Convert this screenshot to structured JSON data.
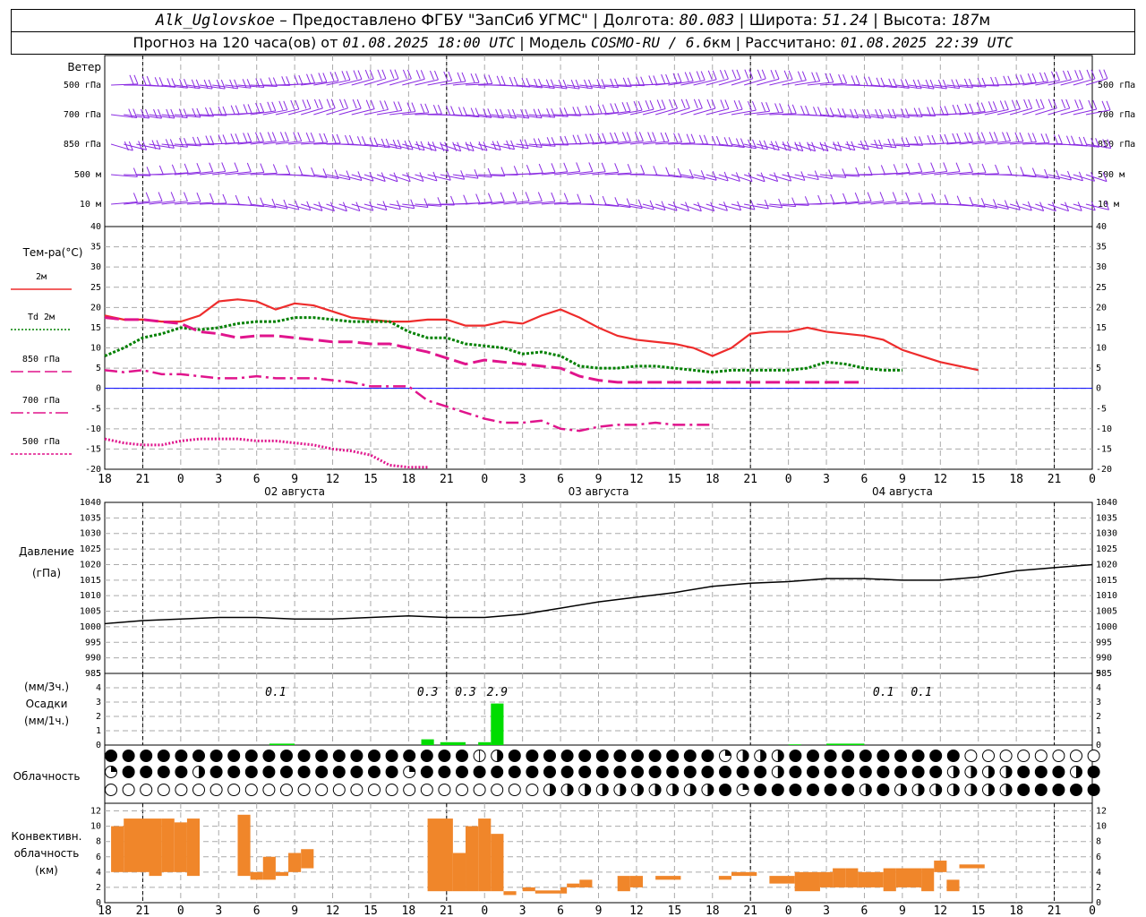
{
  "header": {
    "station": "Alk_Uglovskoe",
    "provider": " – Предоставлено ФГБУ \"ЗапСиб УГМС\" | Долгота: ",
    "lon": "80.083",
    "lat_label": " | Широта: ",
    "lat": "51.24",
    "alt_label": " | Высота: ",
    "alt": "187",
    "alt_unit": "м",
    "forecast_prefix": "Прогноз на 120 часа(ов) от ",
    "run_time": "01.08.2025 18:00 UTC",
    "model_prefix": "  | Модель ",
    "model": "COSMO-RU / 6.6",
    "model_unit": "км",
    "calc_prefix": " | Рассчитано: ",
    "calc_time": "01.08.2025 22:39 UTC"
  },
  "colors": {
    "wind": "#8a2be2",
    "t2m": "#ee2c2c",
    "td2m": "#008000",
    "t850": "#e0148c",
    "t700": "#e0148c",
    "t500": "#e0148c",
    "pressure": "#000000",
    "precip": "#00dd00",
    "convective": "#f0862a",
    "grid": "#aaaaaa",
    "zero_line": "#0000ff"
  },
  "time_axis": {
    "hour_labels": [
      "18",
      "21",
      "0",
      "3",
      "6",
      "9",
      "12",
      "15",
      "18",
      "21",
      "0",
      "3",
      "6",
      "9",
      "12",
      "15",
      "18",
      "21",
      "0",
      "3",
      "6",
      "9",
      "12",
      "15",
      "18",
      "21",
      "0"
    ],
    "day_labels": [
      "02 августа",
      "03 августа",
      "04 августа"
    ]
  },
  "wind_panel": {
    "title": "Ветер",
    "levels": [
      "500 гПа",
      "700 гПа",
      "850 гПа",
      "500 м",
      "10 м"
    ]
  },
  "chart_data": [
    {
      "type": "line",
      "title": "Тем-ра(°C)",
      "x_hours": [
        0,
        3,
        6,
        9,
        12,
        15,
        18,
        21,
        24,
        27,
        30,
        33,
        36,
        39,
        42,
        45,
        48,
        51,
        54,
        57,
        60,
        63,
        66,
        69,
        72,
        75,
        78,
        81,
        84,
        87,
        90,
        93,
        96,
        99,
        102,
        105,
        108,
        111,
        114,
        117,
        120,
        123,
        126,
        129,
        132,
        135,
        138,
        141,
        144,
        147,
        150,
        153,
        156
      ],
      "ylim": [
        -20,
        40
      ],
      "series": [
        {
          "name": "2м",
          "values": [
            18,
            17,
            17,
            16.5,
            16.5,
            18,
            21.5,
            22,
            21.5,
            19.5,
            21,
            20.5,
            19,
            17.5,
            17,
            16.5,
            16.5,
            17,
            17,
            15.5,
            15.5,
            16.5,
            16,
            18,
            19.5,
            17.5,
            15,
            13,
            12,
            11.5,
            11,
            10,
            8,
            10,
            13.5,
            14,
            14,
            15,
            14,
            13.5,
            13,
            12,
            9.5,
            8,
            6.5,
            5.5,
            4.5
          ]
        },
        {
          "name": "Td 2м",
          "values": [
            8,
            10,
            12.5,
            13.5,
            15,
            14.5,
            15,
            16,
            16.5,
            16.5,
            17.5,
            17.5,
            17,
            16.5,
            16.5,
            16.5,
            14,
            12.5,
            12.5,
            11,
            10.5,
            10,
            8.5,
            9,
            8,
            5.5,
            5,
            5,
            5.5,
            5.5,
            5,
            4.5,
            4,
            4.5,
            4.5,
            4.5,
            4.5,
            5,
            6.5,
            6,
            5,
            4.5,
            4.5
          ]
        },
        {
          "name": "850 гПа",
          "values": [
            17.5,
            17,
            17,
            16.5,
            16,
            14,
            13.5,
            12.5,
            13,
            13,
            12.5,
            12,
            11.5,
            11.5,
            11,
            11,
            10,
            9,
            7.5,
            6,
            7,
            6.5,
            6,
            5.5,
            5,
            3,
            2,
            1.5,
            1.5,
            1.5,
            1.5,
            1.5,
            1.5,
            1.5,
            1.5,
            1.5,
            1.5,
            1.5,
            1.5,
            1.5,
            1.5
          ]
        },
        {
          "name": "700 гПа",
          "values": [
            4.5,
            4,
            4.5,
            3.5,
            3.5,
            3,
            2.5,
            2.5,
            3,
            2.5,
            2.5,
            2.5,
            2,
            1.5,
            0.5,
            0.5,
            0.5,
            -3,
            -4.5,
            -6,
            -7.5,
            -8.5,
            -8.5,
            -8,
            -10,
            -10.5,
            -9.5,
            -9,
            -9,
            -8.5,
            -9,
            -9,
            -9
          ]
        },
        {
          "name": "500 гПа",
          "values": [
            -12.5,
            -13.5,
            -14,
            -14,
            -13,
            -12.5,
            -12.5,
            -12.5,
            -13,
            -13,
            -13.5,
            -14,
            -15,
            -15.5,
            -16.5,
            -19,
            -19.5,
            -19.5
          ]
        }
      ]
    },
    {
      "type": "line",
      "title": "Давление",
      "unit": "(гПа)",
      "x_hours": [
        0,
        6,
        12,
        18,
        24,
        30,
        36,
        42,
        48,
        54,
        60,
        66,
        72,
        78,
        84,
        90,
        96,
        102,
        108,
        114,
        120,
        126,
        132,
        138,
        144,
        150,
        156
      ],
      "ylim": [
        985,
        1040
      ],
      "series": [
        {
          "name": "Давление",
          "values": [
            1001,
            1002,
            1002.5,
            1003,
            1003,
            1002.5,
            1002.5,
            1003,
            1003.5,
            1003,
            1003,
            1004,
            1006,
            1008,
            1009.5,
            1011,
            1013,
            1014,
            1014.5,
            1015.5,
            1015.5,
            1015,
            1015,
            1016,
            1018,
            1019,
            1020
          ]
        }
      ]
    },
    {
      "type": "bar",
      "title": "Осадки",
      "unit_top": "(мм/3ч.)",
      "unit_bottom": "(мм/1ч.)",
      "ylim": [
        0,
        5
      ],
      "bars": [
        {
          "start_h": 26,
          "end_h": 30,
          "value": 0.1
        },
        {
          "start_h": 50,
          "end_h": 52,
          "value": 0.4
        },
        {
          "start_h": 53,
          "end_h": 57,
          "value": 0.2
        },
        {
          "start_h": 59,
          "end_h": 61,
          "value": 0.2
        },
        {
          "start_h": 61,
          "end_h": 63,
          "value": 2.9
        },
        {
          "start_h": 108,
          "end_h": 110,
          "value": 0.05
        },
        {
          "start_h": 114,
          "end_h": 120,
          "value": 0.1
        }
      ],
      "labels": [
        {
          "hour": 27,
          "text": "0.1"
        },
        {
          "hour": 51,
          "text": "0.3"
        },
        {
          "hour": 57,
          "text": "0.3"
        },
        {
          "hour": 62,
          "text": "2.9"
        },
        {
          "hour": 123,
          "text": "0.1"
        },
        {
          "hour": 129,
          "text": "0.1"
        }
      ]
    },
    {
      "type": "bar",
      "title": "Конвективн. облачность",
      "unit": "(км)",
      "ylim": [
        0,
        13
      ],
      "bars": [
        {
          "start_h": 1,
          "end_h": 3,
          "bottom": 4,
          "top": 10
        },
        {
          "start_h": 3,
          "end_h": 7,
          "bottom": 4,
          "top": 11
        },
        {
          "start_h": 7,
          "end_h": 9,
          "bottom": 3.5,
          "top": 11
        },
        {
          "start_h": 9,
          "end_h": 11,
          "bottom": 4,
          "top": 11
        },
        {
          "start_h": 11,
          "end_h": 13,
          "bottom": 4,
          "top": 10.5
        },
        {
          "start_h": 13,
          "end_h": 15,
          "bottom": 3.5,
          "top": 11
        },
        {
          "start_h": 21,
          "end_h": 23,
          "bottom": 3.5,
          "top": 11.5
        },
        {
          "start_h": 23,
          "end_h": 25,
          "bottom": 3,
          "top": 4
        },
        {
          "start_h": 25,
          "end_h": 27,
          "bottom": 3,
          "top": 6
        },
        {
          "start_h": 27,
          "end_h": 29,
          "bottom": 3.5,
          "top": 4
        },
        {
          "start_h": 29,
          "end_h": 31,
          "bottom": 4,
          "top": 6.5
        },
        {
          "start_h": 31,
          "end_h": 33,
          "bottom": 4.5,
          "top": 7
        },
        {
          "start_h": 51,
          "end_h": 55,
          "bottom": 1.5,
          "top": 11
        },
        {
          "start_h": 55,
          "end_h": 57,
          "bottom": 1.5,
          "top": 6.5
        },
        {
          "start_h": 57,
          "end_h": 59,
          "bottom": 1.5,
          "top": 10
        },
        {
          "start_h": 59,
          "end_h": 61,
          "bottom": 1.5,
          "top": 11
        },
        {
          "start_h": 61,
          "end_h": 63,
          "bottom": 1.5,
          "top": 9
        },
        {
          "start_h": 63,
          "end_h": 65,
          "bottom": 1,
          "top": 1.5
        },
        {
          "start_h": 66,
          "end_h": 68,
          "bottom": 1.5,
          "top": 2
        },
        {
          "start_h": 68,
          "end_h": 72,
          "bottom": 1.2,
          "top": 1.6
        },
        {
          "start_h": 72,
          "end_h": 73,
          "bottom": 1.2,
          "top": 2
        },
        {
          "start_h": 73,
          "end_h": 75,
          "bottom": 2,
          "top": 2.5
        },
        {
          "start_h": 75,
          "end_h": 77,
          "bottom": 2,
          "top": 3
        },
        {
          "start_h": 81,
          "end_h": 83,
          "bottom": 1.5,
          "top": 3.5
        },
        {
          "start_h": 83,
          "end_h": 85,
          "bottom": 2,
          "top": 3.5
        },
        {
          "start_h": 87,
          "end_h": 91,
          "bottom": 3,
          "top": 3.5
        },
        {
          "start_h": 97,
          "end_h": 99,
          "bottom": 3,
          "top": 3.5
        },
        {
          "start_h": 99,
          "end_h": 103,
          "bottom": 3.5,
          "top": 4
        },
        {
          "start_h": 105,
          "end_h": 109,
          "bottom": 2.5,
          "top": 3.5
        },
        {
          "start_h": 109,
          "end_h": 113,
          "bottom": 1.5,
          "top": 4
        },
        {
          "start_h": 113,
          "end_h": 115,
          "bottom": 2,
          "top": 4
        },
        {
          "start_h": 115,
          "end_h": 117,
          "bottom": 2,
          "top": 4.5
        },
        {
          "start_h": 117,
          "end_h": 119,
          "bottom": 2,
          "top": 4.5
        },
        {
          "start_h": 119,
          "end_h": 123,
          "bottom": 2,
          "top": 4
        },
        {
          "start_h": 123,
          "end_h": 125,
          "bottom": 1.5,
          "top": 4.5
        },
        {
          "start_h": 125,
          "end_h": 129,
          "bottom": 2,
          "top": 4.5
        },
        {
          "start_h": 129,
          "end_h": 131,
          "bottom": 1.5,
          "top": 4.5
        },
        {
          "start_h": 131,
          "end_h": 133,
          "bottom": 4,
          "top": 5.5
        },
        {
          "start_h": 133,
          "end_h": 135,
          "bottom": 1.5,
          "top": 3
        },
        {
          "start_h": 135,
          "end_h": 139,
          "bottom": 4.5,
          "top": 5
        }
      ]
    }
  ],
  "temp_legend": [
    {
      "label": "2м",
      "color": "#ee2c2c",
      "style": "solid"
    },
    {
      "label": "Td  2м",
      "color": "#008000",
      "style": "dotted"
    },
    {
      "label": "850 гПа",
      "color": "#e0148c",
      "style": "dash"
    },
    {
      "label": "700 гПа",
      "color": "#e0148c",
      "style": "dashdot"
    },
    {
      "label": "500 гПа",
      "color": "#e0148c",
      "style": "dot"
    }
  ],
  "cloud_panel": {
    "title": "Облачность",
    "rows": [
      "2222222222222222222221322222222222243332222222222000000000000000000000000000000000000000000000000000000000000000000000000000000000000000000000000000000000",
      "4222232222222222242222222222222222222232222222223333222322323322222222222222222222222222222222222222222223300000000000000000000000000000000000000000000",
      "0000000000000000000000000333333333324222222323333333222222222222222222222222222222222222222222223333333300000000000000000000000000000000000000000000"
    ]
  }
}
